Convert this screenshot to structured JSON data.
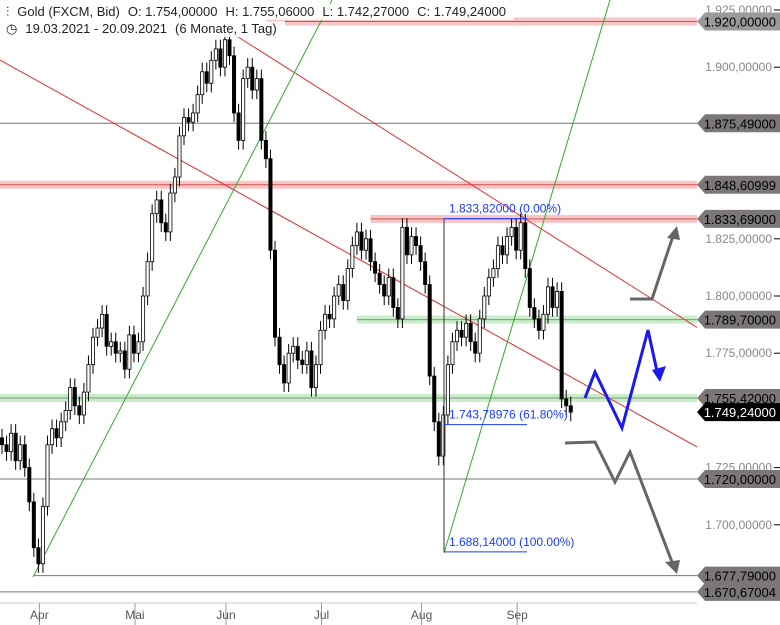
{
  "header": {
    "title": "Gold (FXCM, Bid)",
    "open": "O: 1.754,00000",
    "high": "H: 1.755,06000",
    "low": "L: 1.742,27000",
    "close": "C: 1.749,24000",
    "range": "19.03.2021 - 20.09.2021",
    "period": "(6 Monate, 1 Tag)",
    "icons": [
      "candles-icon",
      "clock-icon"
    ]
  },
  "chart_data": {
    "type": "candlestick",
    "ylim": [
      1660,
      1930
    ],
    "y_ticks": [
      {
        "v": 1925,
        "label": "1.925,00000"
      },
      {
        "v": 1900,
        "label": "1.900,00000"
      },
      {
        "v": 1825,
        "label": "1.825,00000"
      },
      {
        "v": 1800,
        "label": "1.800,00000"
      },
      {
        "v": 1775,
        "label": "1.775,00000"
      },
      {
        "v": 1725,
        "label": "1.725,00000"
      },
      {
        "v": 1700,
        "label": "1.700,00000"
      }
    ],
    "x_ticks": [
      {
        "i": 8,
        "label": "Apr"
      },
      {
        "i": 29,
        "label": "Mai"
      },
      {
        "i": 49,
        "label": "Jun"
      },
      {
        "i": 70,
        "label": "Jul"
      },
      {
        "i": 92,
        "label": "Aug"
      },
      {
        "i": 113,
        "label": "Sep"
      }
    ],
    "close": [
      1735,
      1732,
      1740,
      1728,
      1735,
      1725,
      1710,
      1690,
      1683,
      1708,
      1735,
      1742,
      1738,
      1745,
      1750,
      1760,
      1752,
      1748,
      1758,
      1770,
      1782,
      1786,
      1792,
      1778,
      1780,
      1775,
      1776,
      1768,
      1783,
      1775,
      1780,
      1800,
      1815,
      1836,
      1842,
      1832,
      1828,
      1845,
      1852,
      1870,
      1878,
      1876,
      1880,
      1888,
      1898,
      1893,
      1903,
      1908,
      1900,
      1912,
      1905,
      1880,
      1868,
      1895,
      1900,
      1890,
      1895,
      1868,
      1860,
      1820,
      1782,
      1770,
      1762,
      1775,
      1778,
      1772,
      1770,
      1776,
      1760,
      1770,
      1785,
      1792,
      1790,
      1800,
      1805,
      1798,
      1812,
      1822,
      1828,
      1820,
      1825,
      1815,
      1810,
      1805,
      1800,
      1808,
      1795,
      1790,
      1830,
      1818,
      1826,
      1822,
      1815,
      1805,
      1765,
      1745,
      1730,
      1748,
      1770,
      1780,
      1785,
      1782,
      1788,
      1780,
      1775,
      1790,
      1800,
      1808,
      1812,
      1822,
      1818,
      1826,
      1830,
      1820,
      1832,
      1812,
      1795,
      1790,
      1785,
      1792,
      1804,
      1795,
      1802,
      1755,
      1752,
      1749.24
    ],
    "levels": [
      {
        "v": 1920,
        "label": "1.920,00000",
        "color": "#f4a0a0",
        "band": true,
        "from_i": 58
      },
      {
        "v": 1875.49,
        "label": "1.875,49000",
        "color": "#777777",
        "band": false,
        "from_i": 0
      },
      {
        "v": 1848.60999,
        "label": "1.848,60999",
        "color": "#f4a0a0",
        "band": true,
        "from_i": 0
      },
      {
        "v": 1833.69,
        "label": "1.833,69000",
        "color": "#f4a0a0",
        "band": true,
        "from_i": 81
      },
      {
        "v": 1789.7,
        "label": "1.789,70000",
        "color": "#a8e0a8",
        "band": true,
        "from_i": 78
      },
      {
        "v": 1755.42,
        "label": "1.755,42000",
        "color": "#a8e0a8",
        "band": true,
        "from_i": 0
      },
      {
        "v": 1720,
        "label": "1.720,00000",
        "color": "#777777",
        "band": false,
        "from_i": 0
      },
      {
        "v": 1677.79,
        "label": "1.677,79000",
        "color": "#777777",
        "band": false,
        "from_i": 7
      },
      {
        "v": 1670.67004,
        "label": "1.670,67004",
        "color": "#777777",
        "band": false,
        "from_i": 0
      }
    ],
    "current_price": {
      "v": 1749.24,
      "label": "1.749,24000"
    },
    "fibonacci": [
      {
        "v": 1833.82,
        "label": "1.833,82000 (0.00%)"
      },
      {
        "v": 1743.78976,
        "label": "1.743,78976 (61.80%)"
      },
      {
        "v": 1688.14,
        "label": "1.688,14000 (100.00%)"
      }
    ],
    "colors": {
      "trend_red": "#e03030",
      "trend_green": "#33aa33",
      "fib": "#1a3cff",
      "scenario_blue": "#1a1aee",
      "scenario_gray": "#666666"
    }
  }
}
